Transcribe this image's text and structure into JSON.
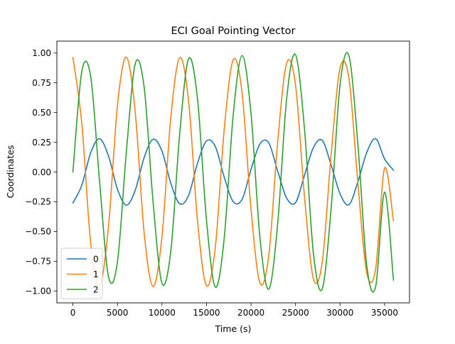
{
  "chart_data": {
    "type": "line",
    "title": "ECI Goal Pointing Vector",
    "xlabel": "Time (s)",
    "ylabel": "Coordinates",
    "xlim": [
      -1800,
      37800
    ],
    "ylim": [
      -1.1,
      1.1
    ],
    "xticks": [
      0,
      5000,
      10000,
      15000,
      20000,
      25000,
      30000,
      35000
    ],
    "xtick_labels": [
      "0",
      "5000",
      "10000",
      "15000",
      "20000",
      "25000",
      "30000",
      "35000"
    ],
    "yticks": [
      -1.0,
      -0.75,
      -0.5,
      -0.25,
      0.0,
      0.25,
      0.5,
      0.75,
      1.0
    ],
    "ytick_labels": [
      "−1.00",
      "−0.75",
      "−0.50",
      "−0.25",
      "0.00",
      "0.25",
      "0.50",
      "0.75",
      "1.00"
    ],
    "grid": false,
    "legend": "lower-left",
    "series": [
      {
        "name": "0",
        "color": "#1f77b4",
        "x": [
          0,
          1000,
          2000,
          3000,
          4000,
          5000,
          6000,
          7000,
          8000,
          9000,
          10000,
          11000,
          12000,
          13000,
          14000,
          15000,
          16000,
          17000,
          18000,
          19000,
          20000,
          21000,
          22000,
          23000,
          24000,
          25000,
          26000,
          27000,
          28000,
          29000,
          30000,
          31000,
          32000,
          33000,
          34000,
          35000,
          36000
        ],
        "y": [
          -0.26,
          -0.111,
          0.162,
          0.28,
          0.134,
          -0.143,
          -0.279,
          -0.153,
          0.121,
          0.275,
          0.176,
          -0.096,
          -0.267,
          -0.195,
          0.075,
          0.261,
          0.213,
          -0.045,
          -0.249,
          -0.23,
          0.021,
          0.236,
          0.244,
          0.006,
          -0.219,
          -0.257,
          -0.03,
          0.204,
          0.266,
          0.059,
          -0.183,
          -0.275,
          -0.084,
          0.164,
          0.28,
          0.11,
          0.015
        ]
      },
      {
        "name": "1",
        "color": "#ff7f0e",
        "x": [
          0,
          1000,
          2000,
          3000,
          4000,
          5000,
          6000,
          7000,
          8000,
          9000,
          10000,
          11000,
          12000,
          13000,
          14000,
          15000,
          16000,
          17000,
          18000,
          19000,
          20000,
          21000,
          22000,
          23000,
          24000,
          25000,
          26000,
          27000,
          28000,
          29000,
          30000,
          31000,
          32000,
          33000,
          34000,
          35000,
          36000
        ],
        "y": [
          0.965,
          0.407,
          -0.598,
          -0.958,
          -0.456,
          0.557,
          0.965,
          0.503,
          -0.511,
          -0.962,
          -0.547,
          0.463,
          0.961,
          0.59,
          -0.415,
          -0.955,
          -0.628,
          0.363,
          0.943,
          0.664,
          -0.311,
          -0.93,
          -0.699,
          0.257,
          0.914,
          0.731,
          -0.201,
          -0.893,
          -0.759,
          0.146,
          0.872,
          0.787,
          -0.089,
          -0.846,
          -0.813,
          0.032,
          -0.41
        ]
      },
      {
        "name": "2",
        "color": "#2ca02c",
        "x": [
          0,
          1000,
          2000,
          3000,
          4000,
          5000,
          6000,
          7000,
          8000,
          9000,
          10000,
          11000,
          12000,
          13000,
          14000,
          15000,
          16000,
          17000,
          18000,
          19000,
          20000,
          21000,
          22000,
          23000,
          24000,
          25000,
          26000,
          27000,
          28000,
          29000,
          30000,
          31000,
          32000,
          33000,
          34000,
          35000,
          36000
        ],
        "y": [
          0.0,
          0.845,
          0.8,
          -0.084,
          -0.88,
          -0.757,
          0.167,
          0.91,
          0.712,
          -0.248,
          -0.934,
          -0.661,
          0.327,
          0.954,
          0.608,
          -0.404,
          -0.968,
          -0.551,
          0.478,
          0.979,
          0.493,
          -0.548,
          -0.985,
          -0.432,
          0.614,
          0.986,
          0.369,
          -0.676,
          -0.983,
          -0.304,
          0.733,
          0.976,
          0.237,
          -0.786,
          -0.964,
          -0.169,
          -0.91
        ]
      }
    ]
  }
}
